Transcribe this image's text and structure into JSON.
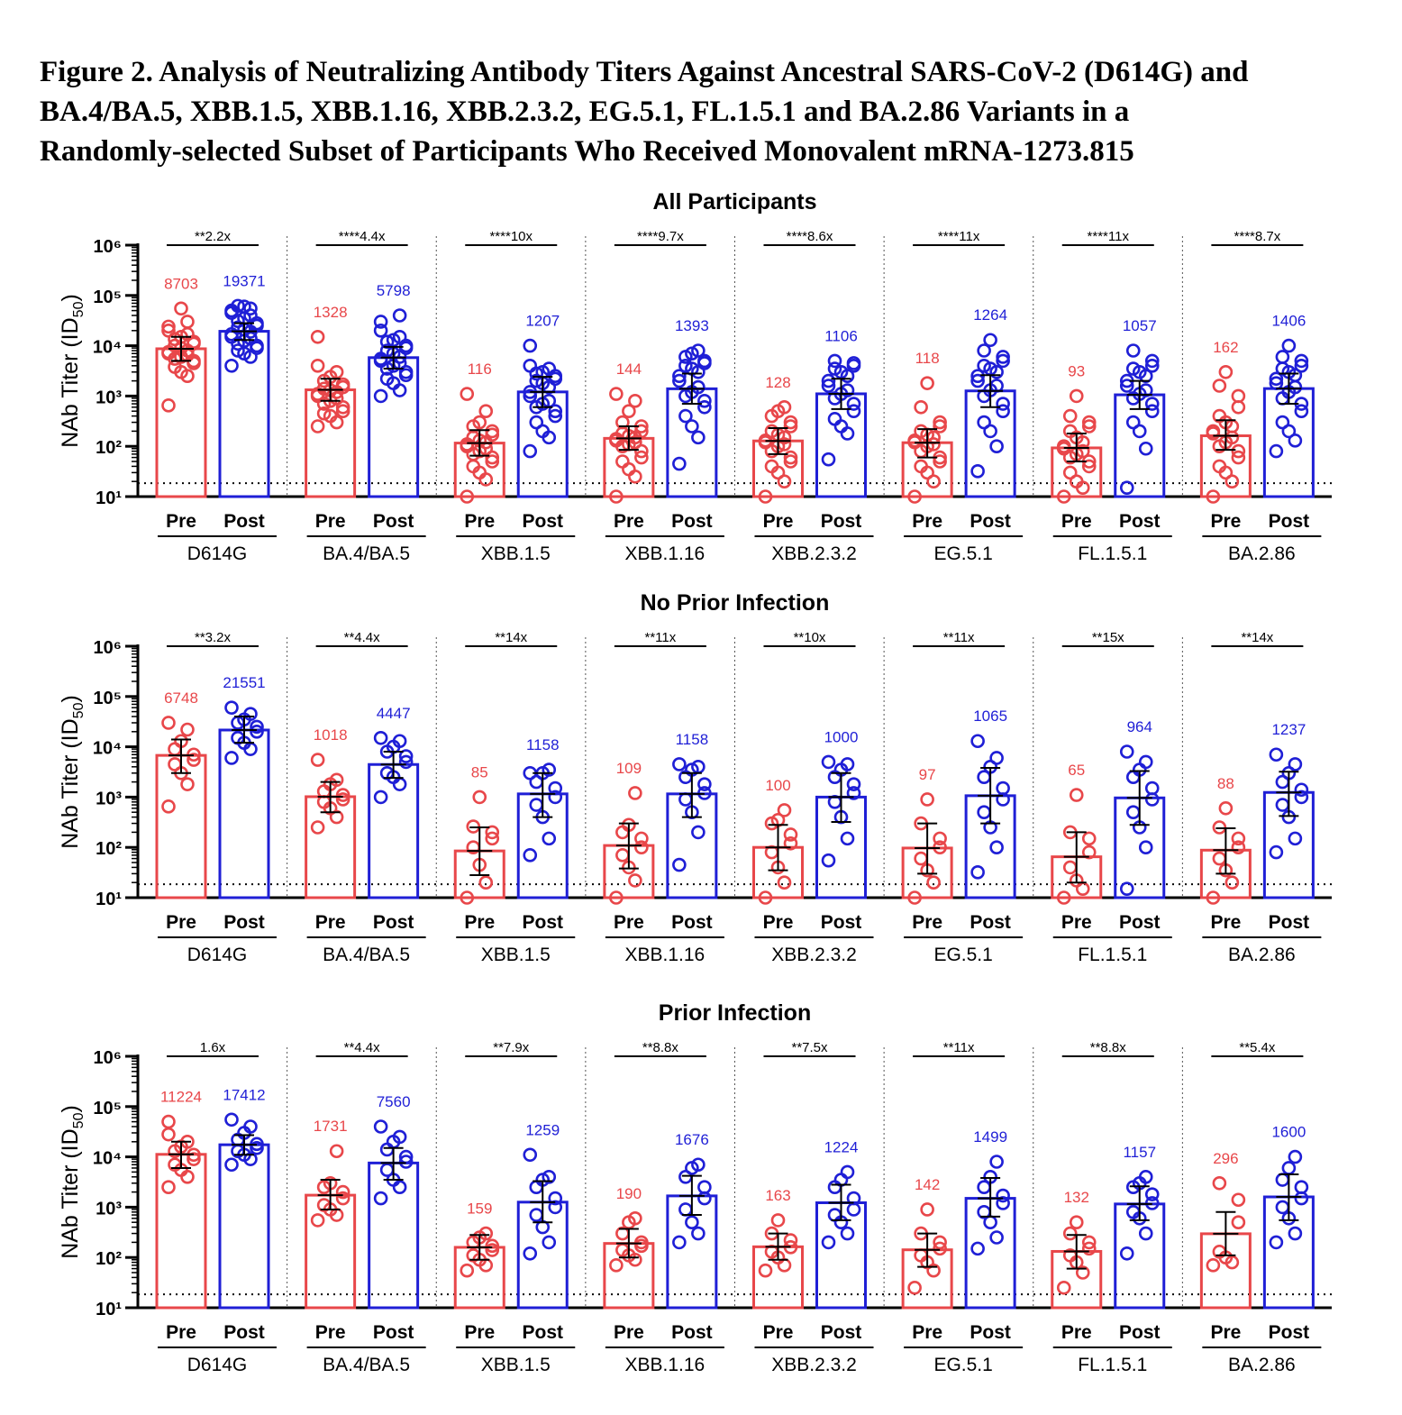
{
  "figure": {
    "title_lines": [
      "Figure 2. Analysis of Neutralizing Antibody Titers Against Ancestral SARS-CoV-2 (D614G) and",
      "BA.4/BA.5, XBB.1.5, XBB.1.16, XBB.2.3.2, EG.5.1, FL.1.5.1 and BA.2.86 Variants in a",
      "Randomly-selected Subset of Participants Who Received Monovalent mRNA-1273.815"
    ]
  },
  "colors": {
    "pre": "#e8474a",
    "post": "#1f1fd6",
    "axis": "#000000"
  },
  "chart_data": [
    {
      "type": "bar",
      "title": "All Participants",
      "ylabel": "NAb Titer (ID50)",
      "yscale": "log",
      "ylim": [
        10,
        1000000
      ],
      "y_ticks": [
        "10¹",
        "10²",
        "10³",
        "10⁴",
        "10⁵",
        "10⁶"
      ],
      "lloq": 18.5,
      "categories": [
        "D614G",
        "BA.4/BA.5",
        "XBB.1.5",
        "XBB.1.16",
        "XBB.2.3.2",
        "EG.5.1",
        "FL.1.5.1",
        "BA.2.86"
      ],
      "group_labels": [
        "Pre",
        "Post"
      ],
      "series": [
        {
          "name": "Pre",
          "values": [
            8703,
            1328,
            116,
            144,
            128,
            118,
            93,
            162
          ],
          "errors": [
            [
              5000,
              15000
            ],
            [
              800,
              2200
            ],
            [
              65,
              210
            ],
            [
              85,
              250
            ],
            [
              70,
              230
            ],
            [
              60,
              220
            ],
            [
              50,
              180
            ],
            [
              85,
              330
            ]
          ]
        },
        {
          "name": "Post",
          "values": [
            19371,
            5798,
            1207,
            1393,
            1106,
            1264,
            1057,
            1406
          ],
          "errors": [
            [
              13000,
              28000
            ],
            [
              3500,
              9500
            ],
            [
              600,
              2400
            ],
            [
              700,
              2800
            ],
            [
              550,
              2200
            ],
            [
              600,
              2600
            ],
            [
              550,
              2000
            ],
            [
              700,
              2800
            ]
          ]
        }
      ],
      "fold_labels": [
        "**2.2x",
        "****4.4x",
        "****10x",
        "****9.7x",
        "****8.6x",
        "****11x",
        "****11x",
        "****8.7x"
      ],
      "points": {
        "pre": [
          [
            650,
            2500,
            3000,
            3800,
            4500,
            5000,
            5500,
            6000,
            6500,
            7000,
            7500,
            8000,
            9000,
            10000,
            11000,
            12000,
            13500,
            15000,
            17000,
            20000,
            24000,
            30000,
            55000
          ],
          [
            250,
            300,
            400,
            450,
            500,
            600,
            700,
            800,
            900,
            1000,
            1100,
            1200,
            1300,
            1400,
            1500,
            1700,
            2000,
            2400,
            3000,
            4000,
            15000
          ],
          [
            10,
            22,
            30,
            40,
            50,
            60,
            70,
            80,
            90,
            100,
            110,
            120,
            130,
            150,
            170,
            200,
            250,
            300,
            500,
            1100
          ],
          [
            10,
            25,
            35,
            50,
            60,
            80,
            100,
            110,
            120,
            130,
            140,
            150,
            160,
            180,
            200,
            250,
            300,
            500,
            800,
            1100
          ],
          [
            10,
            20,
            30,
            40,
            50,
            60,
            80,
            100,
            110,
            120,
            130,
            150,
            170,
            200,
            250,
            300,
            400,
            500,
            600
          ],
          [
            10,
            20,
            30,
            40,
            50,
            60,
            80,
            100,
            110,
            120,
            130,
            150,
            170,
            200,
            250,
            300,
            600,
            1800
          ],
          [
            10,
            15,
            20,
            30,
            40,
            50,
            60,
            70,
            80,
            90,
            100,
            120,
            150,
            200,
            250,
            300,
            400,
            1000
          ],
          [
            10,
            20,
            30,
            40,
            60,
            80,
            100,
            120,
            150,
            180,
            200,
            250,
            300,
            400,
            600,
            1000,
            1600,
            3000
          ]
        ],
        "post": [
          [
            4000,
            6000,
            7000,
            8000,
            9000,
            10000,
            11000,
            12500,
            14000,
            15000,
            17000,
            19000,
            21000,
            23000,
            25000,
            28000,
            31000,
            35000,
            40000,
            45000,
            50000,
            55000,
            60000,
            62000
          ],
          [
            1000,
            1300,
            1800,
            2200,
            2600,
            3000,
            3500,
            4000,
            4500,
            5000,
            5500,
            6000,
            7000,
            8000,
            9000,
            10000,
            12000,
            13000,
            15000,
            20000,
            30000,
            40000
          ],
          [
            80,
            150,
            200,
            300,
            400,
            500,
            600,
            700,
            800,
            1000,
            1200,
            1500,
            1800,
            2000,
            2200,
            2500,
            2800,
            3000,
            3500,
            4000,
            10000
          ],
          [
            45,
            150,
            250,
            400,
            600,
            800,
            1000,
            1200,
            1500,
            2000,
            2500,
            3000,
            3500,
            4000,
            4500,
            5000,
            6000,
            7000,
            8000
          ],
          [
            55,
            180,
            250,
            350,
            500,
            700,
            900,
            1100,
            1300,
            1600,
            2000,
            2500,
            3000,
            3500,
            4000,
            4500,
            5000
          ],
          [
            32,
            100,
            200,
            300,
            500,
            700,
            1000,
            1300,
            1600,
            2000,
            2500,
            3000,
            3500,
            4000,
            5000,
            6000,
            8000,
            13000
          ],
          [
            15,
            90,
            200,
            300,
            500,
            700,
            900,
            1100,
            1300,
            1600,
            2000,
            2500,
            3000,
            3500,
            4000,
            5000,
            8000
          ],
          [
            80,
            130,
            200,
            300,
            500,
            700,
            900,
            1200,
            1500,
            1800,
            2200,
            2600,
            3000,
            3500,
            4000,
            5000,
            6000,
            10000
          ]
        ]
      }
    },
    {
      "type": "bar",
      "title": "No Prior Infection",
      "ylabel": "NAb Titer (ID50)",
      "yscale": "log",
      "ylim": [
        10,
        1000000
      ],
      "y_ticks": [
        "10¹",
        "10²",
        "10³",
        "10⁴",
        "10⁵",
        "10⁶"
      ],
      "lloq": 18.5,
      "categories": [
        "D614G",
        "BA.4/BA.5",
        "XBB.1.5",
        "XBB.1.16",
        "XBB.2.3.2",
        "EG.5.1",
        "FL.1.5.1",
        "BA.2.86"
      ],
      "group_labels": [
        "Pre",
        "Post"
      ],
      "series": [
        {
          "name": "Pre",
          "values": [
            6748,
            1018,
            85,
            109,
            100,
            97,
            65,
            88
          ],
          "errors": [
            [
              3000,
              14000
            ],
            [
              500,
              2000
            ],
            [
              28,
              250
            ],
            [
              38,
              300
            ],
            [
              35,
              280
            ],
            [
              30,
              300
            ],
            [
              20,
              200
            ],
            [
              30,
              240
            ]
          ]
        },
        {
          "name": "Post",
          "values": [
            21551,
            4447,
            1158,
            1158,
            1000,
            1065,
            964,
            1237
          ],
          "errors": [
            [
              12000,
              40000
            ],
            [
              2400,
              8000
            ],
            [
              400,
              3000
            ],
            [
              400,
              3000
            ],
            [
              320,
              3000
            ],
            [
              300,
              3800
            ],
            [
              280,
              3300
            ],
            [
              420,
              3200
            ]
          ]
        }
      ],
      "fold_labels": [
        "**3.2x",
        "**4.4x",
        "**14x",
        "**11x",
        "**10x",
        "**11x",
        "**15x",
        "**14x"
      ],
      "points": {
        "pre": [
          [
            650,
            1800,
            3000,
            4500,
            5500,
            7000,
            9000,
            13000,
            22000,
            30000
          ],
          [
            250,
            400,
            600,
            800,
            900,
            1100,
            1300,
            1800,
            2200,
            5500
          ],
          [
            10,
            20,
            45,
            100,
            150,
            200,
            260,
            1000
          ],
          [
            10,
            22,
            40,
            70,
            100,
            150,
            200,
            280,
            1200
          ],
          [
            10,
            20,
            40,
            80,
            120,
            180,
            300,
            350,
            550
          ],
          [
            10,
            20,
            35,
            60,
            100,
            150,
            300,
            900
          ],
          [
            10,
            15,
            22,
            40,
            80,
            150,
            200,
            1100
          ],
          [
            10,
            20,
            35,
            60,
            100,
            150,
            250,
            600
          ]
        ],
        "post": [
          [
            6000,
            9000,
            12000,
            15000,
            20000,
            25000,
            30000,
            35000,
            45000,
            60000
          ],
          [
            1000,
            1800,
            2500,
            3000,
            5000,
            6500,
            8000,
            10000,
            13000,
            15000
          ],
          [
            70,
            150,
            400,
            700,
            1000,
            1500,
            2000,
            3000,
            3500,
            3000
          ],
          [
            45,
            200,
            500,
            900,
            1200,
            1800,
            2500,
            3500,
            4000,
            4500
          ],
          [
            55,
            150,
            400,
            800,
            1200,
            1800,
            2500,
            3500,
            4500,
            5000
          ],
          [
            32,
            100,
            250,
            500,
            900,
            1500,
            2500,
            4000,
            6000,
            13000
          ],
          [
            15,
            100,
            250,
            500,
            900,
            1500,
            2500,
            3500,
            5000,
            8000
          ],
          [
            80,
            150,
            400,
            700,
            1000,
            1400,
            2000,
            3000,
            4500,
            7000
          ]
        ]
      }
    },
    {
      "type": "bar",
      "title": "Prior Infection",
      "ylabel": "NAb Titer (ID50)",
      "yscale": "log",
      "ylim": [
        10,
        1000000
      ],
      "y_ticks": [
        "10¹",
        "10²",
        "10³",
        "10⁴",
        "10⁵",
        "10⁶"
      ],
      "lloq": 18.5,
      "categories": [
        "D614G",
        "BA.4/BA.5",
        "XBB.1.5",
        "XBB.1.16",
        "XBB.2.3.2",
        "EG.5.1",
        "FL.1.5.1",
        "BA.2.86"
      ],
      "group_labels": [
        "Pre",
        "Post"
      ],
      "series": [
        {
          "name": "Pre",
          "values": [
            11224,
            1731,
            159,
            190,
            163,
            142,
            132,
            296
          ],
          "errors": [
            [
              6000,
              20000
            ],
            [
              900,
              3500
            ],
            [
              90,
              280
            ],
            [
              100,
              370
            ],
            [
              90,
              300
            ],
            [
              65,
              300
            ],
            [
              60,
              280
            ],
            [
              110,
              800
            ]
          ]
        },
        {
          "name": "Post",
          "values": [
            17412,
            7560,
            1259,
            1676,
            1224,
            1499,
            1157,
            1600
          ],
          "errors": [
            [
              11000,
              27000
            ],
            [
              3500,
              15000
            ],
            [
              500,
              3300
            ],
            [
              700,
              4200
            ],
            [
              550,
              2800
            ],
            [
              650,
              3800
            ],
            [
              550,
              2600
            ],
            [
              550,
              4500
            ]
          ]
        }
      ],
      "fold_labels": [
        "1.6x",
        "**4.4x",
        "**7.9x",
        "**8.8x",
        "**7.5x",
        "**11x",
        "**8.8x",
        "**5.4x"
      ],
      "points": {
        "pre": [
          [
            2500,
            4000,
            5500,
            7000,
            9000,
            11000,
            13000,
            16000,
            20000,
            28000,
            50000
          ],
          [
            550,
            700,
            900,
            1100,
            1500,
            2000,
            2500,
            3000,
            13000
          ],
          [
            55,
            70,
            90,
            110,
            140,
            170,
            200,
            250,
            300
          ],
          [
            70,
            90,
            110,
            140,
            170,
            200,
            300,
            500,
            600
          ],
          [
            55,
            70,
            100,
            130,
            160,
            220,
            300,
            550
          ],
          [
            25,
            55,
            80,
            110,
            150,
            200,
            300,
            900
          ],
          [
            25,
            50,
            80,
            110,
            150,
            200,
            300,
            500
          ],
          [
            70,
            80,
            100,
            130,
            500,
            1400,
            3000
          ]
        ],
        "post": [
          [
            7000,
            9000,
            11000,
            13000,
            15000,
            18000,
            22000,
            30000,
            40000,
            55000
          ],
          [
            1500,
            2500,
            3500,
            5500,
            8000,
            10000,
            14000,
            20000,
            25000,
            40000
          ],
          [
            120,
            200,
            400,
            700,
            1000,
            1500,
            2500,
            3500,
            4000,
            11000
          ],
          [
            200,
            300,
            500,
            900,
            1500,
            2500,
            4000,
            6000,
            7000
          ],
          [
            200,
            300,
            500,
            700,
            900,
            1500,
            2500,
            3500,
            5000
          ],
          [
            150,
            250,
            500,
            800,
            1200,
            1700,
            2500,
            4000,
            8000
          ],
          [
            120,
            300,
            600,
            800,
            1200,
            1800,
            2500,
            3000,
            4000
          ],
          [
            200,
            300,
            600,
            1000,
            1500,
            2500,
            3500,
            6000,
            10000
          ]
        ]
      }
    }
  ]
}
